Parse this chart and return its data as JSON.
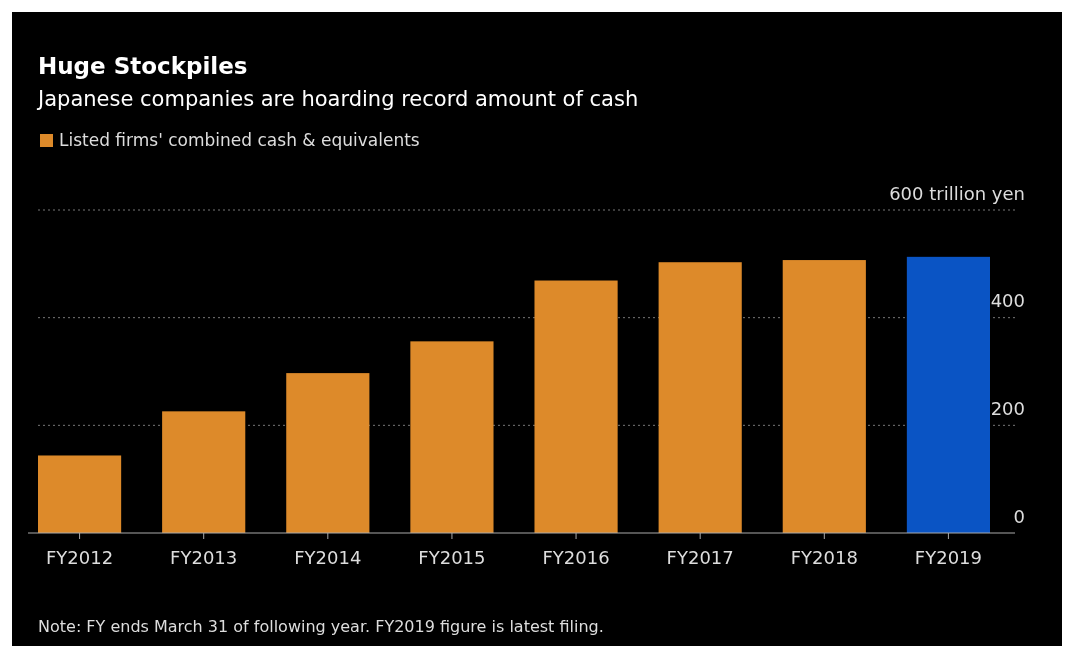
{
  "chart_data": {
    "type": "bar",
    "title": "Huge Stockpiles",
    "subtitle": "Japanese companies are hoarding record amount of cash",
    "categories": [
      "FY2012",
      "FY2013",
      "FY2014",
      "FY2015",
      "FY2016",
      "FY2017",
      "FY2018",
      "FY2019"
    ],
    "series": [
      {
        "name": "Listed firms' combined cash & equivalents",
        "color": "#dd8a2a",
        "colors": [
          "#dd8a2a",
          "#dd8a2a",
          "#dd8a2a",
          "#dd8a2a",
          "#dd8a2a",
          "#dd8a2a",
          "#dd8a2a",
          "#0a54c4"
        ],
        "values": [
          144,
          226,
          297,
          356,
          469,
          503,
          507,
          513
        ]
      }
    ],
    "ylim": [
      0,
      600
    ],
    "yticks": [
      0,
      200,
      400,
      {
        "value": 600,
        "label": "600 trillion yen"
      }
    ],
    "grid": "y",
    "legend": "top left",
    "annotations": [
      "Note: FY ends March 31 of following year. FY2019 figure is latest filing."
    ]
  }
}
